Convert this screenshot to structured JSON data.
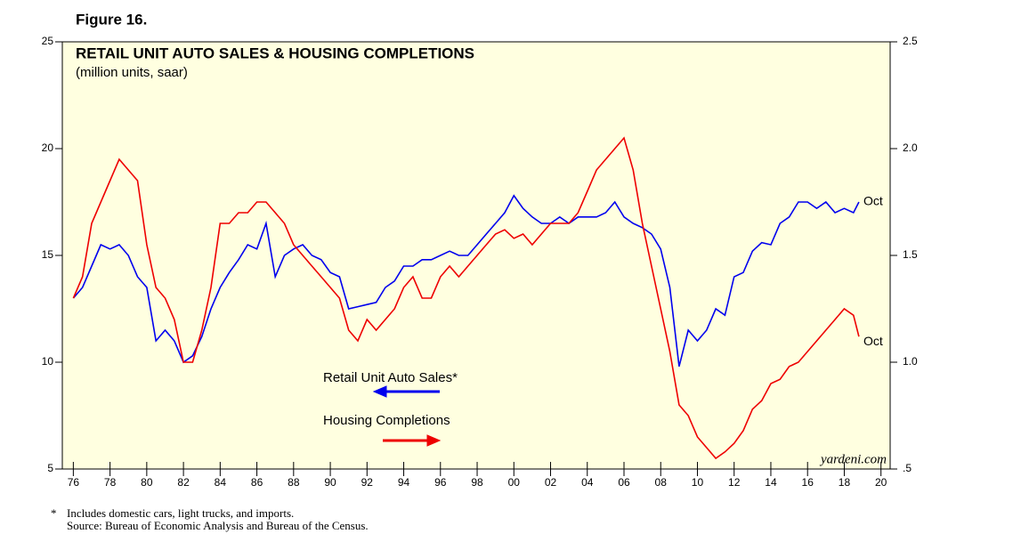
{
  "figure_label": "Figure 16.",
  "chart_data": {
    "type": "line",
    "title": "RETAIL UNIT AUTO SALES & HOUSING COMPLETIONS",
    "subtitle": "(million units, saar)",
    "watermark": "yardeni.com",
    "x": [
      1976,
      1976.5,
      1977,
      1977.5,
      1978,
      1978.5,
      1979,
      1979.5,
      1980,
      1980.5,
      1981,
      1981.5,
      1982,
      1982.5,
      1983,
      1983.5,
      1984,
      1984.5,
      1985,
      1985.5,
      1986,
      1986.5,
      1987,
      1987.5,
      1988,
      1988.5,
      1989,
      1989.5,
      1990,
      1990.5,
      1991,
      1991.5,
      1992,
      1992.5,
      1993,
      1993.5,
      1994,
      1994.5,
      1995,
      1995.5,
      1996,
      1996.5,
      1997,
      1997.5,
      1998,
      1998.5,
      1999,
      1999.5,
      2000,
      2000.5,
      2001,
      2001.5,
      2002,
      2002.5,
      2003,
      2003.5,
      2004,
      2004.5,
      2005,
      2005.5,
      2006,
      2006.5,
      2007,
      2007.5,
      2008,
      2008.5,
      2009,
      2009.5,
      2010,
      2010.5,
      2011,
      2011.5,
      2012,
      2012.5,
      2013,
      2013.5,
      2014,
      2014.5,
      2015,
      2015.5,
      2016,
      2016.5,
      2017,
      2017.5,
      2018,
      2018.5,
      2018.8
    ],
    "series": [
      {
        "name": "Retail Unit Auto Sales*",
        "color": "#0000ee",
        "end_label": "Oct",
        "values": [
          13.0,
          13.5,
          14.5,
          15.5,
          15.3,
          15.5,
          15.0,
          14.0,
          13.5,
          11.0,
          11.5,
          11.0,
          10.0,
          10.3,
          11.2,
          12.5,
          13.5,
          14.2,
          14.8,
          15.5,
          15.3,
          16.5,
          14.0,
          15.0,
          15.3,
          15.5,
          15.0,
          14.8,
          14.2,
          14.0,
          12.5,
          12.6,
          12.7,
          12.8,
          13.5,
          13.8,
          14.5,
          14.5,
          14.8,
          14.8,
          15.0,
          15.2,
          15.0,
          15.0,
          15.5,
          16.0,
          16.5,
          17.0,
          17.8,
          17.2,
          16.8,
          16.5,
          16.5,
          16.8,
          16.5,
          16.8,
          16.8,
          16.8,
          17.0,
          17.5,
          16.8,
          16.5,
          16.3,
          16.0,
          15.3,
          13.5,
          9.8,
          11.5,
          11.0,
          11.5,
          12.5,
          12.2,
          14.0,
          14.2,
          15.2,
          15.6,
          15.5,
          16.5,
          16.8,
          17.5,
          17.5,
          17.2,
          17.5,
          17.0,
          17.2,
          17.0,
          17.5
        ]
      },
      {
        "name": "Housing Completions",
        "color": "#ee0000",
        "axis": "y2",
        "end_label": "Oct",
        "values": [
          1.3,
          1.4,
          1.65,
          1.75,
          1.85,
          1.95,
          1.9,
          1.85,
          1.55,
          1.35,
          1.3,
          1.2,
          1.0,
          1.0,
          1.15,
          1.35,
          1.65,
          1.65,
          1.7,
          1.7,
          1.75,
          1.75,
          1.7,
          1.65,
          1.55,
          1.5,
          1.45,
          1.4,
          1.35,
          1.3,
          1.15,
          1.1,
          1.2,
          1.15,
          1.2,
          1.25,
          1.35,
          1.4,
          1.3,
          1.3,
          1.4,
          1.45,
          1.4,
          1.45,
          1.5,
          1.55,
          1.6,
          1.62,
          1.58,
          1.6,
          1.55,
          1.6,
          1.65,
          1.65,
          1.65,
          1.7,
          1.8,
          1.9,
          1.95,
          2.0,
          2.05,
          1.9,
          1.65,
          1.45,
          1.25,
          1.05,
          0.8,
          0.75,
          0.65,
          0.6,
          0.55,
          0.58,
          0.62,
          0.68,
          0.78,
          0.82,
          0.9,
          0.92,
          0.98,
          1.0,
          1.05,
          1.1,
          1.15,
          1.2,
          1.25,
          1.22,
          1.12
        ]
      }
    ],
    "xlim": [
      1975.4,
      2020.5
    ],
    "xticks": [
      {
        "value": 1976,
        "label": "76"
      },
      {
        "value": 1978,
        "label": "78"
      },
      {
        "value": 1980,
        "label": "80"
      },
      {
        "value": 1982,
        "label": "82"
      },
      {
        "value": 1984,
        "label": "84"
      },
      {
        "value": 1986,
        "label": "86"
      },
      {
        "value": 1988,
        "label": "88"
      },
      {
        "value": 1990,
        "label": "90"
      },
      {
        "value": 1992,
        "label": "92"
      },
      {
        "value": 1994,
        "label": "94"
      },
      {
        "value": 1996,
        "label": "96"
      },
      {
        "value": 1998,
        "label": "98"
      },
      {
        "value": 2000,
        "label": "00"
      },
      {
        "value": 2002,
        "label": "02"
      },
      {
        "value": 2004,
        "label": "04"
      },
      {
        "value": 2006,
        "label": "06"
      },
      {
        "value": 2008,
        "label": "08"
      },
      {
        "value": 2010,
        "label": "10"
      },
      {
        "value": 2012,
        "label": "12"
      },
      {
        "value": 2014,
        "label": "14"
      },
      {
        "value": 2016,
        "label": "16"
      },
      {
        "value": 2018,
        "label": "18"
      },
      {
        "value": 2020,
        "label": "20"
      }
    ],
    "ylim": [
      5,
      25
    ],
    "yticks": [
      5,
      10,
      15,
      20,
      25
    ],
    "y2lim": [
      0.5,
      2.5
    ],
    "y2ticks": [
      {
        "value": 0.5,
        "label": ".5"
      },
      {
        "value": 1,
        "label": "1.0"
      },
      1.5,
      {
        "value": 2,
        "label": "2.0"
      },
      2.5
    ],
    "background": "#ffffe0"
  },
  "footnote": {
    "marker": "*",
    "lines": [
      "Includes domestic cars, light trucks, and imports.",
      "Source: Bureau of Economic Analysis and Bureau of the Census."
    ]
  }
}
